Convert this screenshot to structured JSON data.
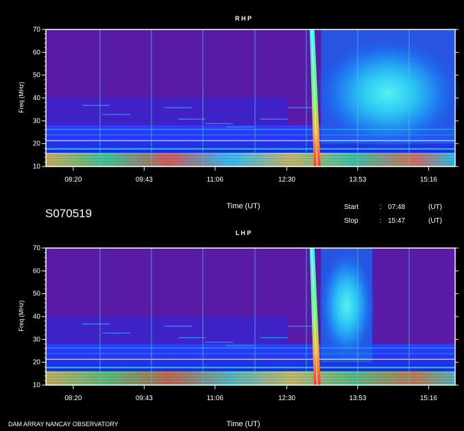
{
  "event_id": "S070519",
  "time_info": {
    "start_label": "Start",
    "start_value": "07:48",
    "start_unit": "(UT)",
    "stop_label": "Stop",
    "stop_value": "15:47",
    "stop_unit": "(UT)"
  },
  "footer": {
    "observatory": "DAM ARRAY  NANCAY OBSERVATORY"
  },
  "chart_data": [
    {
      "type": "heatmap",
      "title": "R H P",
      "xlabel": "Time (UT)",
      "ylabel": "Freq (MHz)",
      "xticks": [
        "08:20",
        "09:43",
        "11:06",
        "12:30",
        "13:53",
        "15:16"
      ],
      "yticks": [
        10,
        20,
        30,
        40,
        50,
        60,
        70
      ],
      "ylim": [
        10,
        70
      ],
      "xlim": [
        "07:48",
        "15:47"
      ],
      "colors": {
        "background": "#5a1aa8",
        "band": "#1d2fe8",
        "burst": "#2cf0c8"
      },
      "burst_time": "13:00",
      "diffuse_emission": {
        "start": "13:10",
        "end": "15:47",
        "center_freq": 42
      }
    },
    {
      "type": "heatmap",
      "title": "L H P",
      "xlabel": "Time (UT)",
      "ylabel": "Freq (MHz)",
      "xticks": [
        "08:20",
        "09:43",
        "11:06",
        "12:30",
        "13:53",
        "15:16"
      ],
      "yticks": [
        10,
        20,
        30,
        40,
        50,
        60,
        70
      ],
      "ylim": [
        10,
        70
      ],
      "xlim": [
        "07:48",
        "15:47"
      ],
      "colors": {
        "background": "#5a1aa8",
        "band": "#1d2fe8",
        "burst": "#2cf0c8"
      },
      "burst_time": "13:00",
      "diffuse_emission": {
        "start": "13:10",
        "end": "14:10",
        "center_freq": 45
      }
    }
  ]
}
